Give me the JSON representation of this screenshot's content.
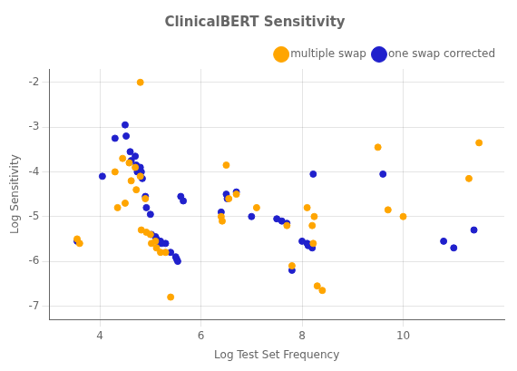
{
  "chart_data": {
    "type": "scatter",
    "title": "ClinicalBERT Sensitivity",
    "xlabel": "Log Test Set Frequency",
    "ylabel": "Log Sensitivity",
    "xlim": [
      3.0,
      12.0
    ],
    "ylim": [
      -7.3,
      -1.7
    ],
    "xticks": [
      4,
      6,
      8,
      10
    ],
    "yticks": [
      -7,
      -6,
      -5,
      -4,
      -3,
      -2
    ],
    "grid": true,
    "legend": "upper right",
    "series": [
      {
        "name": "multiple swap",
        "color": "#FFA500",
        "x": [
          4.8,
          3.55,
          3.6,
          4.3,
          4.35,
          4.45,
          4.5,
          4.58,
          4.62,
          4.7,
          4.72,
          4.8,
          4.82,
          4.9,
          4.92,
          5.0,
          5.02,
          5.1,
          5.12,
          5.2,
          5.3,
          5.4,
          6.4,
          6.42,
          6.5,
          6.55,
          6.7,
          7.1,
          7.7,
          7.8,
          8.1,
          8.2,
          8.22,
          8.24,
          8.3,
          8.4,
          9.5,
          9.7,
          10.0,
          11.3,
          11.5
        ],
        "values": [
          -2.0,
          -5.5,
          -5.6,
          -4.0,
          -4.8,
          -3.7,
          -4.7,
          -3.8,
          -4.2,
          -3.9,
          -4.4,
          -4.1,
          -5.3,
          -4.6,
          -5.35,
          -5.4,
          -5.6,
          -5.55,
          -5.7,
          -5.8,
          -5.8,
          -6.8,
          -5.0,
          -5.1,
          -3.85,
          -4.6,
          -4.5,
          -4.8,
          -5.2,
          -6.1,
          -4.8,
          -5.2,
          -5.6,
          -5.0,
          -6.55,
          -6.65,
          -3.45,
          -4.85,
          -5.0,
          -4.15,
          -3.35
        ]
      },
      {
        "name": "one swap corrected",
        "color": "#2020CC",
        "x": [
          3.55,
          4.05,
          4.3,
          4.5,
          4.52,
          4.6,
          4.62,
          4.7,
          4.72,
          4.74,
          4.8,
          4.82,
          4.84,
          4.9,
          4.92,
          5.0,
          5.02,
          5.1,
          5.12,
          5.14,
          5.2,
          5.22,
          5.3,
          5.4,
          5.5,
          5.52,
          5.54,
          5.6,
          5.65,
          6.4,
          6.5,
          6.52,
          6.7,
          7.0,
          7.5,
          7.6,
          7.7,
          7.8,
          8.0,
          8.1,
          8.12,
          8.2,
          8.22,
          9.6,
          10.8,
          11.0,
          11.4
        ],
        "values": [
          -5.55,
          -4.1,
          -3.25,
          -2.95,
          -3.2,
          -3.55,
          -3.75,
          -3.65,
          -3.85,
          -4.0,
          -3.9,
          -4.0,
          -4.15,
          -4.55,
          -4.8,
          -4.95,
          -5.4,
          -5.45,
          -5.5,
          -5.55,
          -5.55,
          -5.6,
          -5.6,
          -5.8,
          -5.9,
          -5.95,
          -6.0,
          -4.55,
          -4.65,
          -4.9,
          -4.5,
          -4.6,
          -4.45,
          -5.0,
          -5.05,
          -5.1,
          -5.15,
          -6.2,
          -5.55,
          -5.6,
          -5.65,
          -5.7,
          -4.05,
          -4.05,
          -5.55,
          -5.7,
          -5.3
        ]
      }
    ]
  }
}
